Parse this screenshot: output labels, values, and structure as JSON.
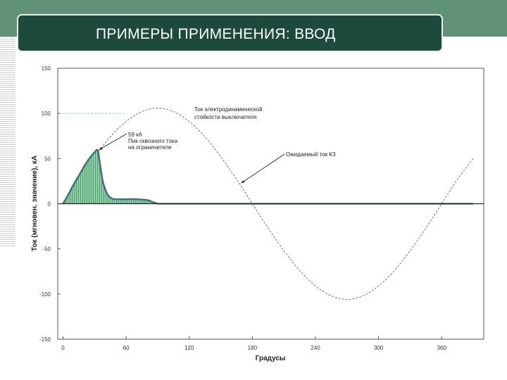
{
  "slide": {
    "title": "ПРИМЕРЫ ПРИМЕНЕНИЯ: ВВОД",
    "colors": {
      "band": "#5f9277",
      "title_bar": "#1e4a3e",
      "fill": "#8fd0a8",
      "limited": "#4a6a86"
    }
  },
  "chart_data": {
    "type": "line",
    "xlabel": "Градусы",
    "ylabel": "Ток (мгновен. значение), кА",
    "xlim": [
      -5,
      400
    ],
    "ylim": [
      -150,
      150
    ],
    "x_ticks": [
      "0",
      "60",
      "120",
      "180",
      "240",
      "300",
      "360"
    ],
    "y_ticks": [
      "150",
      "100",
      "50",
      "0",
      "-50",
      "-100",
      "-150"
    ],
    "grid": false,
    "reference_level": 100,
    "series": [
      {
        "style": "dashed",
        "x": [
          0,
          15,
          30,
          45,
          60,
          75,
          90,
          105,
          120,
          135,
          150,
          165,
          180,
          195,
          210,
          225,
          240,
          255,
          270,
          285,
          300,
          315,
          330,
          345,
          360,
          375,
          390
        ],
        "y": [
          0,
          27,
          52,
          74,
          91,
          102,
          106,
          102,
          91,
          74,
          52,
          27,
          0,
          -27,
          -52,
          -74,
          -91,
          -102,
          -106,
          -102,
          -91,
          -74,
          -52,
          -27,
          0,
          27,
          50
        ]
      },
      {
        "style": "filled",
        "x": [
          0,
          5,
          10,
          15,
          20,
          25,
          30,
          33,
          35,
          38,
          42,
          46,
          50,
          55,
          60,
          70,
          80,
          85,
          90
        ],
        "y": [
          0,
          10,
          21,
          31,
          41,
          50,
          57,
          59,
          45,
          24,
          11,
          6,
          5,
          5,
          5,
          5,
          4,
          2,
          0
        ]
      },
      {
        "style": "flat",
        "x": [
          90,
          390
        ],
        "y": [
          0,
          0
        ]
      }
    ],
    "annotations": [
      {
        "lines": [
          "59 кА",
          "Пик сквозного тока",
          "на ограничителе"
        ],
        "target": [
          33,
          59
        ]
      },
      {
        "lines": [
          "Ток электродинамической",
          "стойкости выключателя"
        ],
        "target": [
          60,
          100
        ]
      },
      {
        "lines": [
          "Ожидаемый ток КЗ"
        ],
        "target": [
          168,
          22
        ]
      }
    ]
  }
}
